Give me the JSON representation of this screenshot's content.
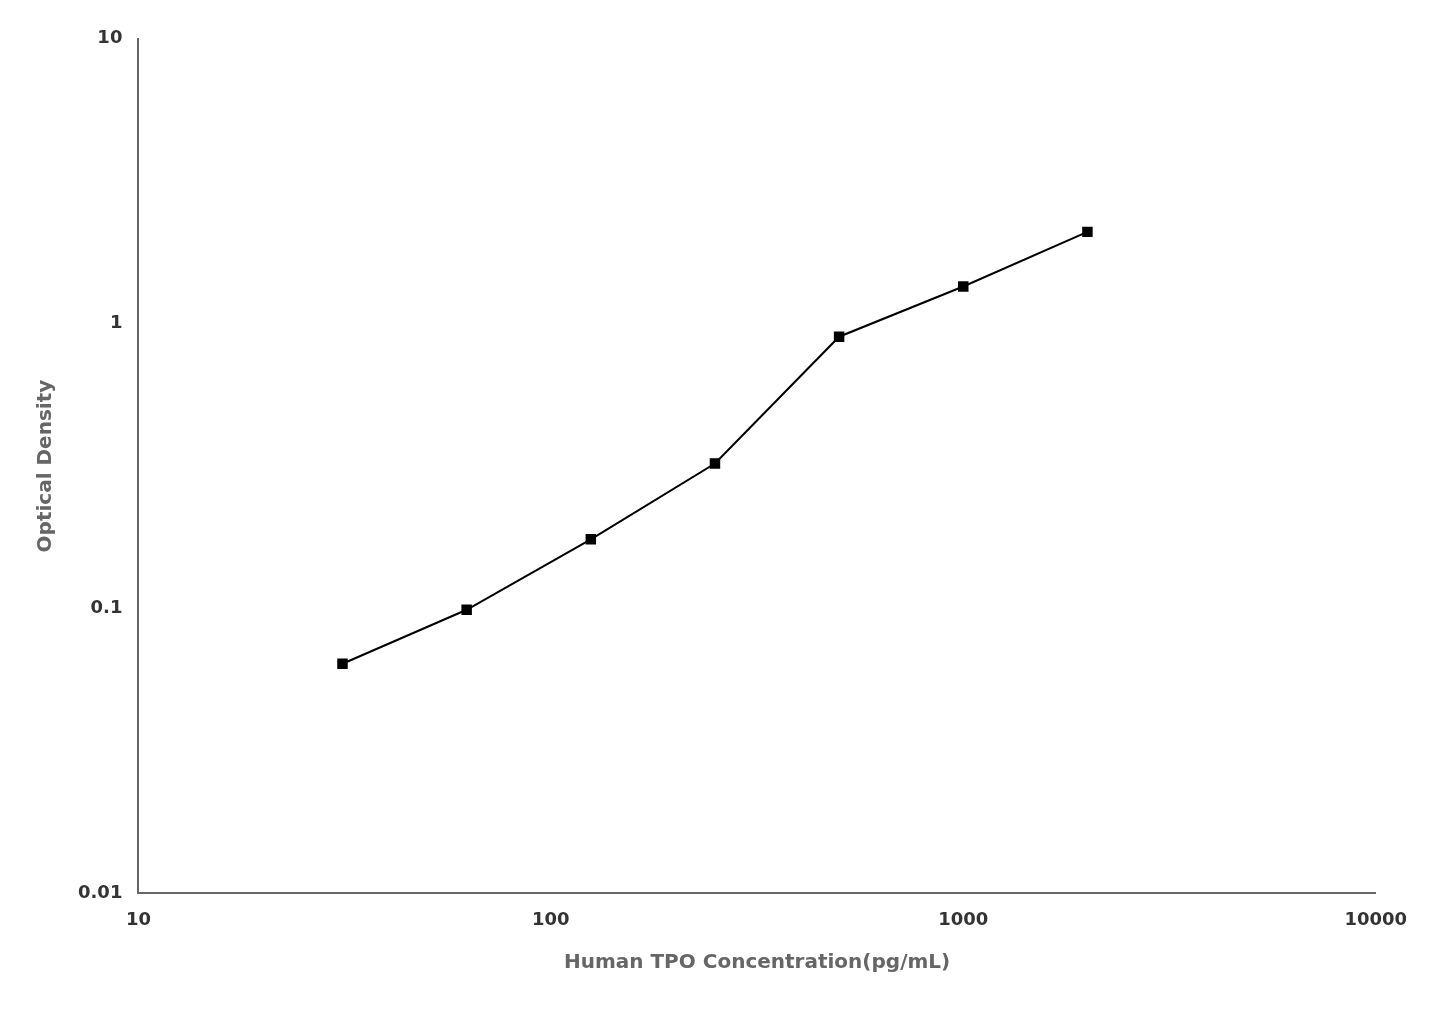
{
  "chart_data": {
    "type": "line",
    "x": [
      31.25,
      62.5,
      125,
      250,
      500,
      1000,
      2000
    ],
    "values": [
      0.064,
      0.099,
      0.175,
      0.323,
      0.9,
      1.35,
      2.1
    ],
    "xlabel": "Human TPO Concentration(pg/mL)",
    "ylabel": "Optical Density",
    "xlim": [
      10,
      10000
    ],
    "ylim": [
      0.01,
      10
    ],
    "xticks": [
      10,
      100,
      1000,
      10000
    ],
    "yticks": [
      0.01,
      0.1,
      1,
      10
    ],
    "log": true,
    "grid": false,
    "color": "#000000",
    "marker": "square"
  }
}
